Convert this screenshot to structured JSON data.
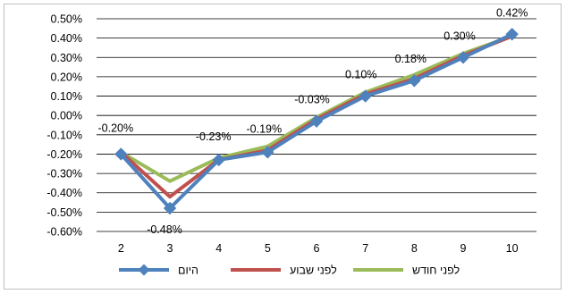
{
  "chart_data": {
    "type": "line",
    "categories": [
      "2",
      "3",
      "4",
      "5",
      "6",
      "7",
      "8",
      "9",
      "10"
    ],
    "ylim": [
      -0.6,
      0.5
    ],
    "ytick_step": 0.1,
    "grid": true,
    "legend_position": "bottom",
    "series": [
      {
        "name": "היום",
        "color": "#4f81bd",
        "marker": "diamond",
        "values": [
          -0.2,
          -0.48,
          -0.23,
          -0.19,
          -0.03,
          0.1,
          0.18,
          0.3,
          0.42
        ],
        "data_labels": [
          "-0.20%",
          "-0.48%",
          "-0.23%",
          "-0.19%",
          "-0.03%",
          "0.10%",
          "0.18%",
          "0.30%",
          "0.42%"
        ]
      },
      {
        "name": "לפני שבוע",
        "color": "#c0504d",
        "marker": "none",
        "values": [
          -0.19,
          -0.42,
          -0.23,
          -0.18,
          -0.02,
          0.11,
          0.19,
          0.31,
          0.41
        ]
      },
      {
        "name": "לפני חודש",
        "color": "#9bbb59",
        "marker": "none",
        "values": [
          -0.19,
          -0.34,
          -0.22,
          -0.16,
          -0.01,
          0.12,
          0.21,
          0.32,
          0.41
        ]
      }
    ]
  }
}
